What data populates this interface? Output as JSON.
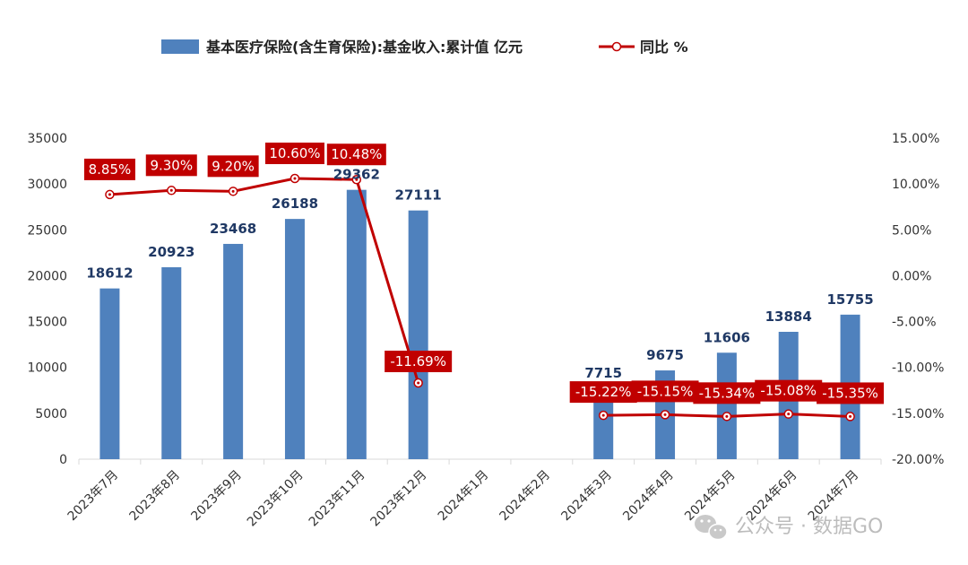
{
  "chart_data": {
    "type": "bar",
    "categories": [
      "2023年7月",
      "2023年8月",
      "2023年9月",
      "2023年10月",
      "2023年11月",
      "2023年12月",
      "2024年1月",
      "2024年2月",
      "2024年3月",
      "2024年4月",
      "2024年5月",
      "2024年6月",
      "2024年7月"
    ],
    "series": [
      {
        "name": "基本医疗保险(含生育保险):基金收入:累计值 亿元",
        "type": "bar",
        "axis": "left",
        "color": "#4f81bd",
        "values": [
          18612,
          20923,
          23468,
          26188,
          29362,
          27111,
          null,
          null,
          7715,
          9675,
          11606,
          13884,
          15755
        ],
        "labels": [
          "18612",
          "20923",
          "23468",
          "26188",
          "29362",
          "27111",
          "",
          "",
          "7715",
          "9675",
          "11606",
          "13884",
          "15755"
        ]
      },
      {
        "name": "同比 %",
        "type": "line",
        "axis": "right",
        "color": "#c00000",
        "values": [
          8.85,
          9.3,
          9.2,
          10.6,
          10.48,
          -11.69,
          null,
          null,
          -15.22,
          -15.15,
          -15.34,
          -15.08,
          -15.35
        ],
        "labels": [
          "8.85%",
          "9.30%",
          "9.20%",
          "10.60%",
          "10.48%",
          "-11.69%",
          "",
          "",
          "-15.22%",
          "-15.15%",
          "-15.34%",
          "-15.08%",
          "-15.35%"
        ]
      }
    ],
    "y_left": {
      "min": 0,
      "max": 35000,
      "step": 5000,
      "ticks": [
        "0",
        "5000",
        "10000",
        "15000",
        "20000",
        "25000",
        "30000",
        "35000"
      ]
    },
    "y_right": {
      "min": -20,
      "max": 15,
      "step": 5,
      "ticks": [
        "-20.00%",
        "-15.00%",
        "-10.00%",
        "-5.00%",
        "0.00%",
        "5.00%",
        "10.00%",
        "15.00%"
      ]
    },
    "grid": false,
    "legend": "top-center"
  },
  "watermark": {
    "text": "公众号 · 数据GO",
    "icon": "wechat-icon"
  }
}
